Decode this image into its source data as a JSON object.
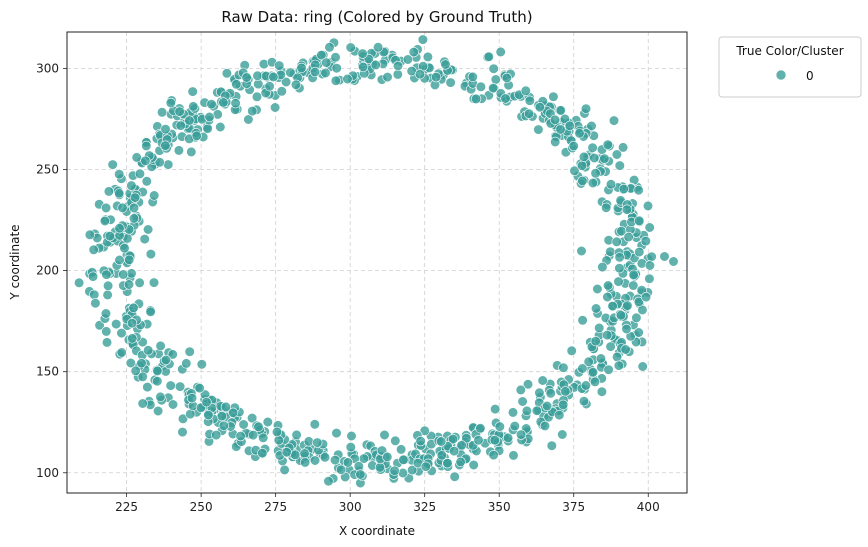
{
  "chart_data": {
    "type": "scatter",
    "title": "Raw Data: ring (Colored by Ground Truth)",
    "xlabel": "X coordinate",
    "ylabel": "Y coordinate",
    "xlim": [
      205,
      413
    ],
    "ylim": [
      90,
      318
    ],
    "xticks": [
      225,
      250,
      275,
      300,
      325,
      350,
      375,
      400
    ],
    "yticks": [
      100,
      150,
      200,
      250,
      300
    ],
    "grid": true,
    "grid_style": "dashed",
    "legend_placement": "outside-top-right",
    "legend": {
      "title": "True Color/Cluster",
      "entries": [
        "0"
      ]
    },
    "series": [
      {
        "label": "0",
        "color": "#3a9e98",
        "shape": "ring",
        "center": [
          308,
          204
        ],
        "radius_x": 87,
        "radius_y": 98,
        "band_width": 9,
        "point_count": 1000
      }
    ]
  }
}
